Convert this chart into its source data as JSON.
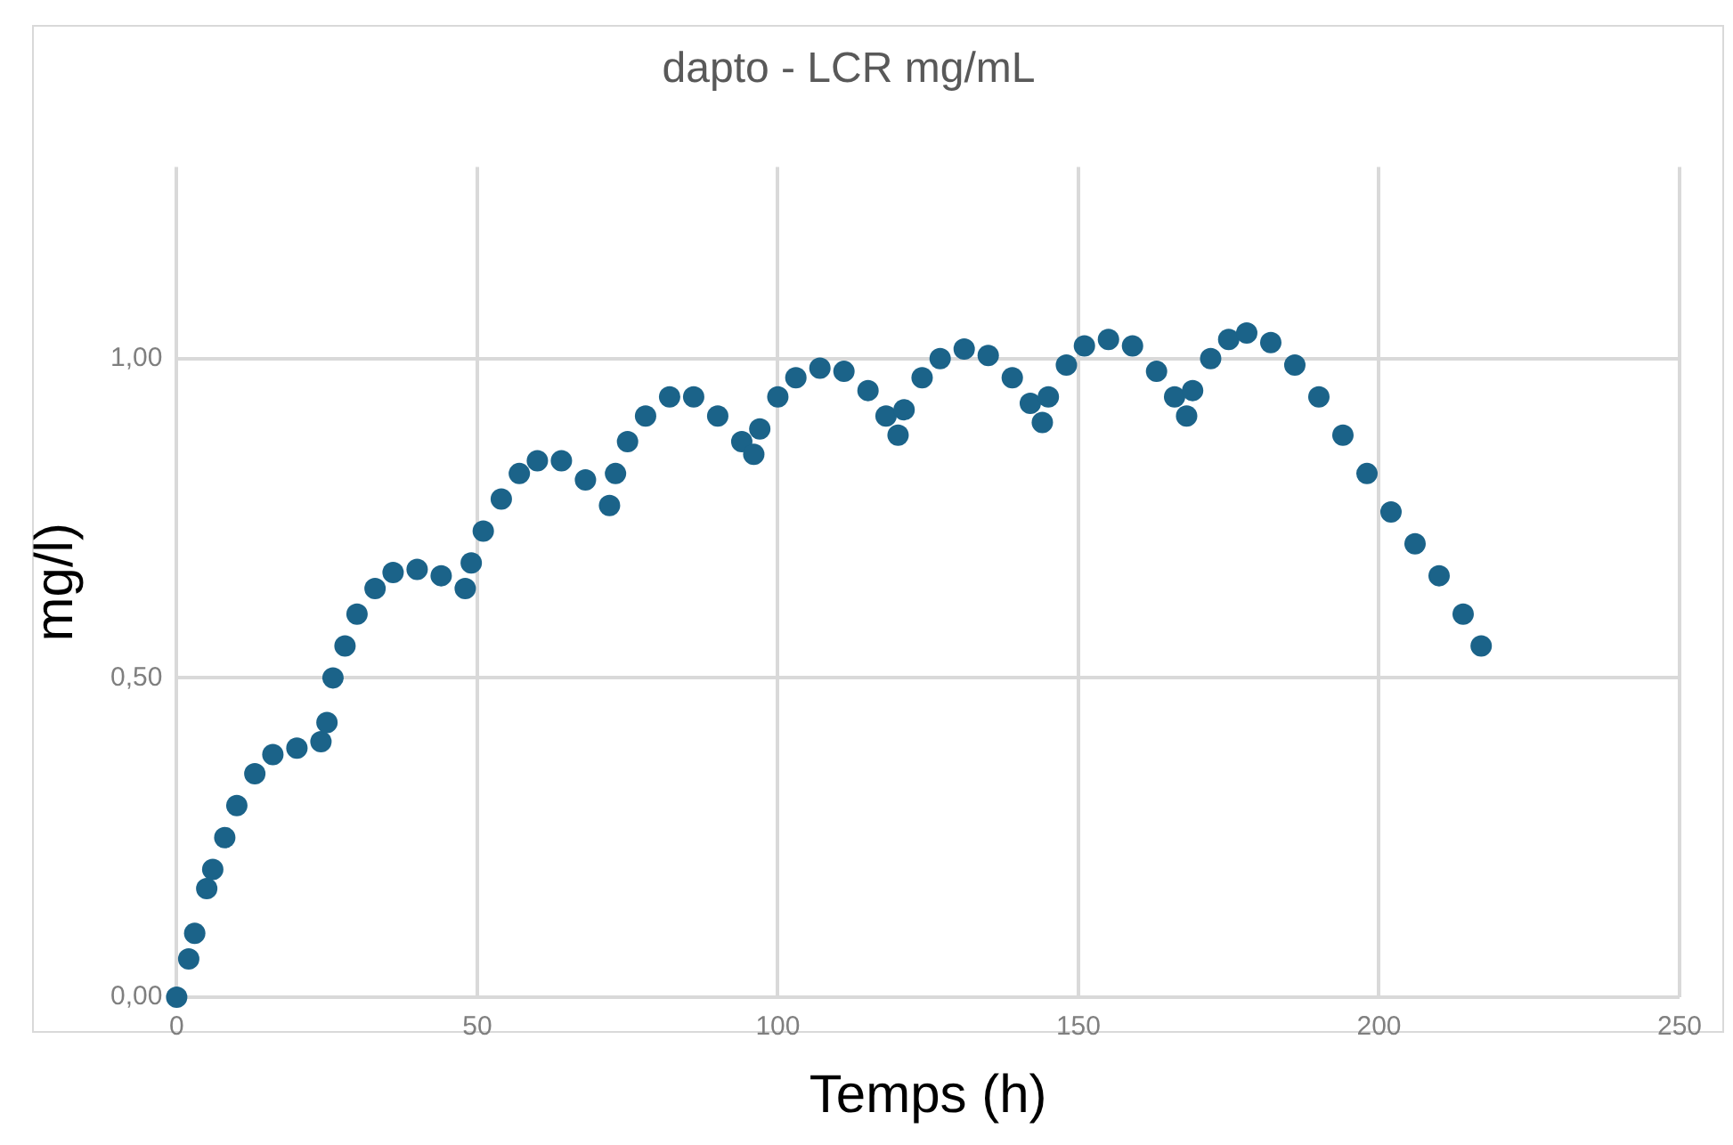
{
  "chart_data": {
    "type": "scatter",
    "title": "dapto - LCR mg/mL",
    "xlabel": "Temps (h)",
    "ylabel": "mg/l)",
    "xlim": [
      0,
      250
    ],
    "xticks": [
      0,
      50,
      100,
      150,
      200,
      250
    ],
    "ylim": [
      0,
      1.3
    ],
    "yticks": [
      {
        "value": 0,
        "label": "0,00"
      },
      {
        "value": 0.5,
        "label": "0,50"
      },
      {
        "value": 1,
        "label": "1,00"
      }
    ],
    "grid": true,
    "legend": false,
    "marker": "circle",
    "series": [
      {
        "color": "#1b6389",
        "x": [
          0,
          2,
          3,
          5,
          6,
          8,
          10,
          13,
          16,
          20,
          24,
          25,
          26,
          28,
          30,
          33,
          36,
          40,
          44,
          48,
          49,
          51,
          54,
          57,
          60,
          64,
          68,
          72,
          73,
          75,
          78,
          82,
          86,
          90,
          94,
          96,
          97,
          100,
          103,
          107,
          111,
          115,
          118,
          120,
          121,
          124,
          127,
          131,
          135,
          139,
          142,
          144,
          145,
          148,
          151,
          155,
          159,
          163,
          166,
          168,
          169,
          172,
          175,
          178,
          182,
          186,
          190,
          194,
          198,
          202,
          206,
          210,
          214,
          217
        ],
        "values": [
          0,
          0.06,
          0.1,
          0.17,
          0.2,
          0.25,
          0.3,
          0.35,
          0.38,
          0.39,
          0.4,
          0.43,
          0.5,
          0.55,
          0.6,
          0.64,
          0.665,
          0.67,
          0.66,
          0.64,
          0.68,
          0.73,
          0.78,
          0.82,
          0.84,
          0.84,
          0.81,
          0.77,
          0.82,
          0.87,
          0.91,
          0.94,
          0.94,
          0.91,
          0.87,
          0.85,
          0.89,
          0.94,
          0.97,
          0.985,
          0.98,
          0.95,
          0.91,
          0.88,
          0.92,
          0.97,
          1.0,
          1.015,
          1.005,
          0.97,
          0.93,
          0.9,
          0.94,
          0.99,
          1.02,
          1.03,
          1.02,
          0.98,
          0.94,
          0.91,
          0.95,
          1.0,
          1.03,
          1.04,
          1.025,
          0.99,
          0.94,
          0.88,
          0.82,
          0.76,
          0.71,
          0.66,
          0.6,
          0.55
        ]
      }
    ]
  }
}
